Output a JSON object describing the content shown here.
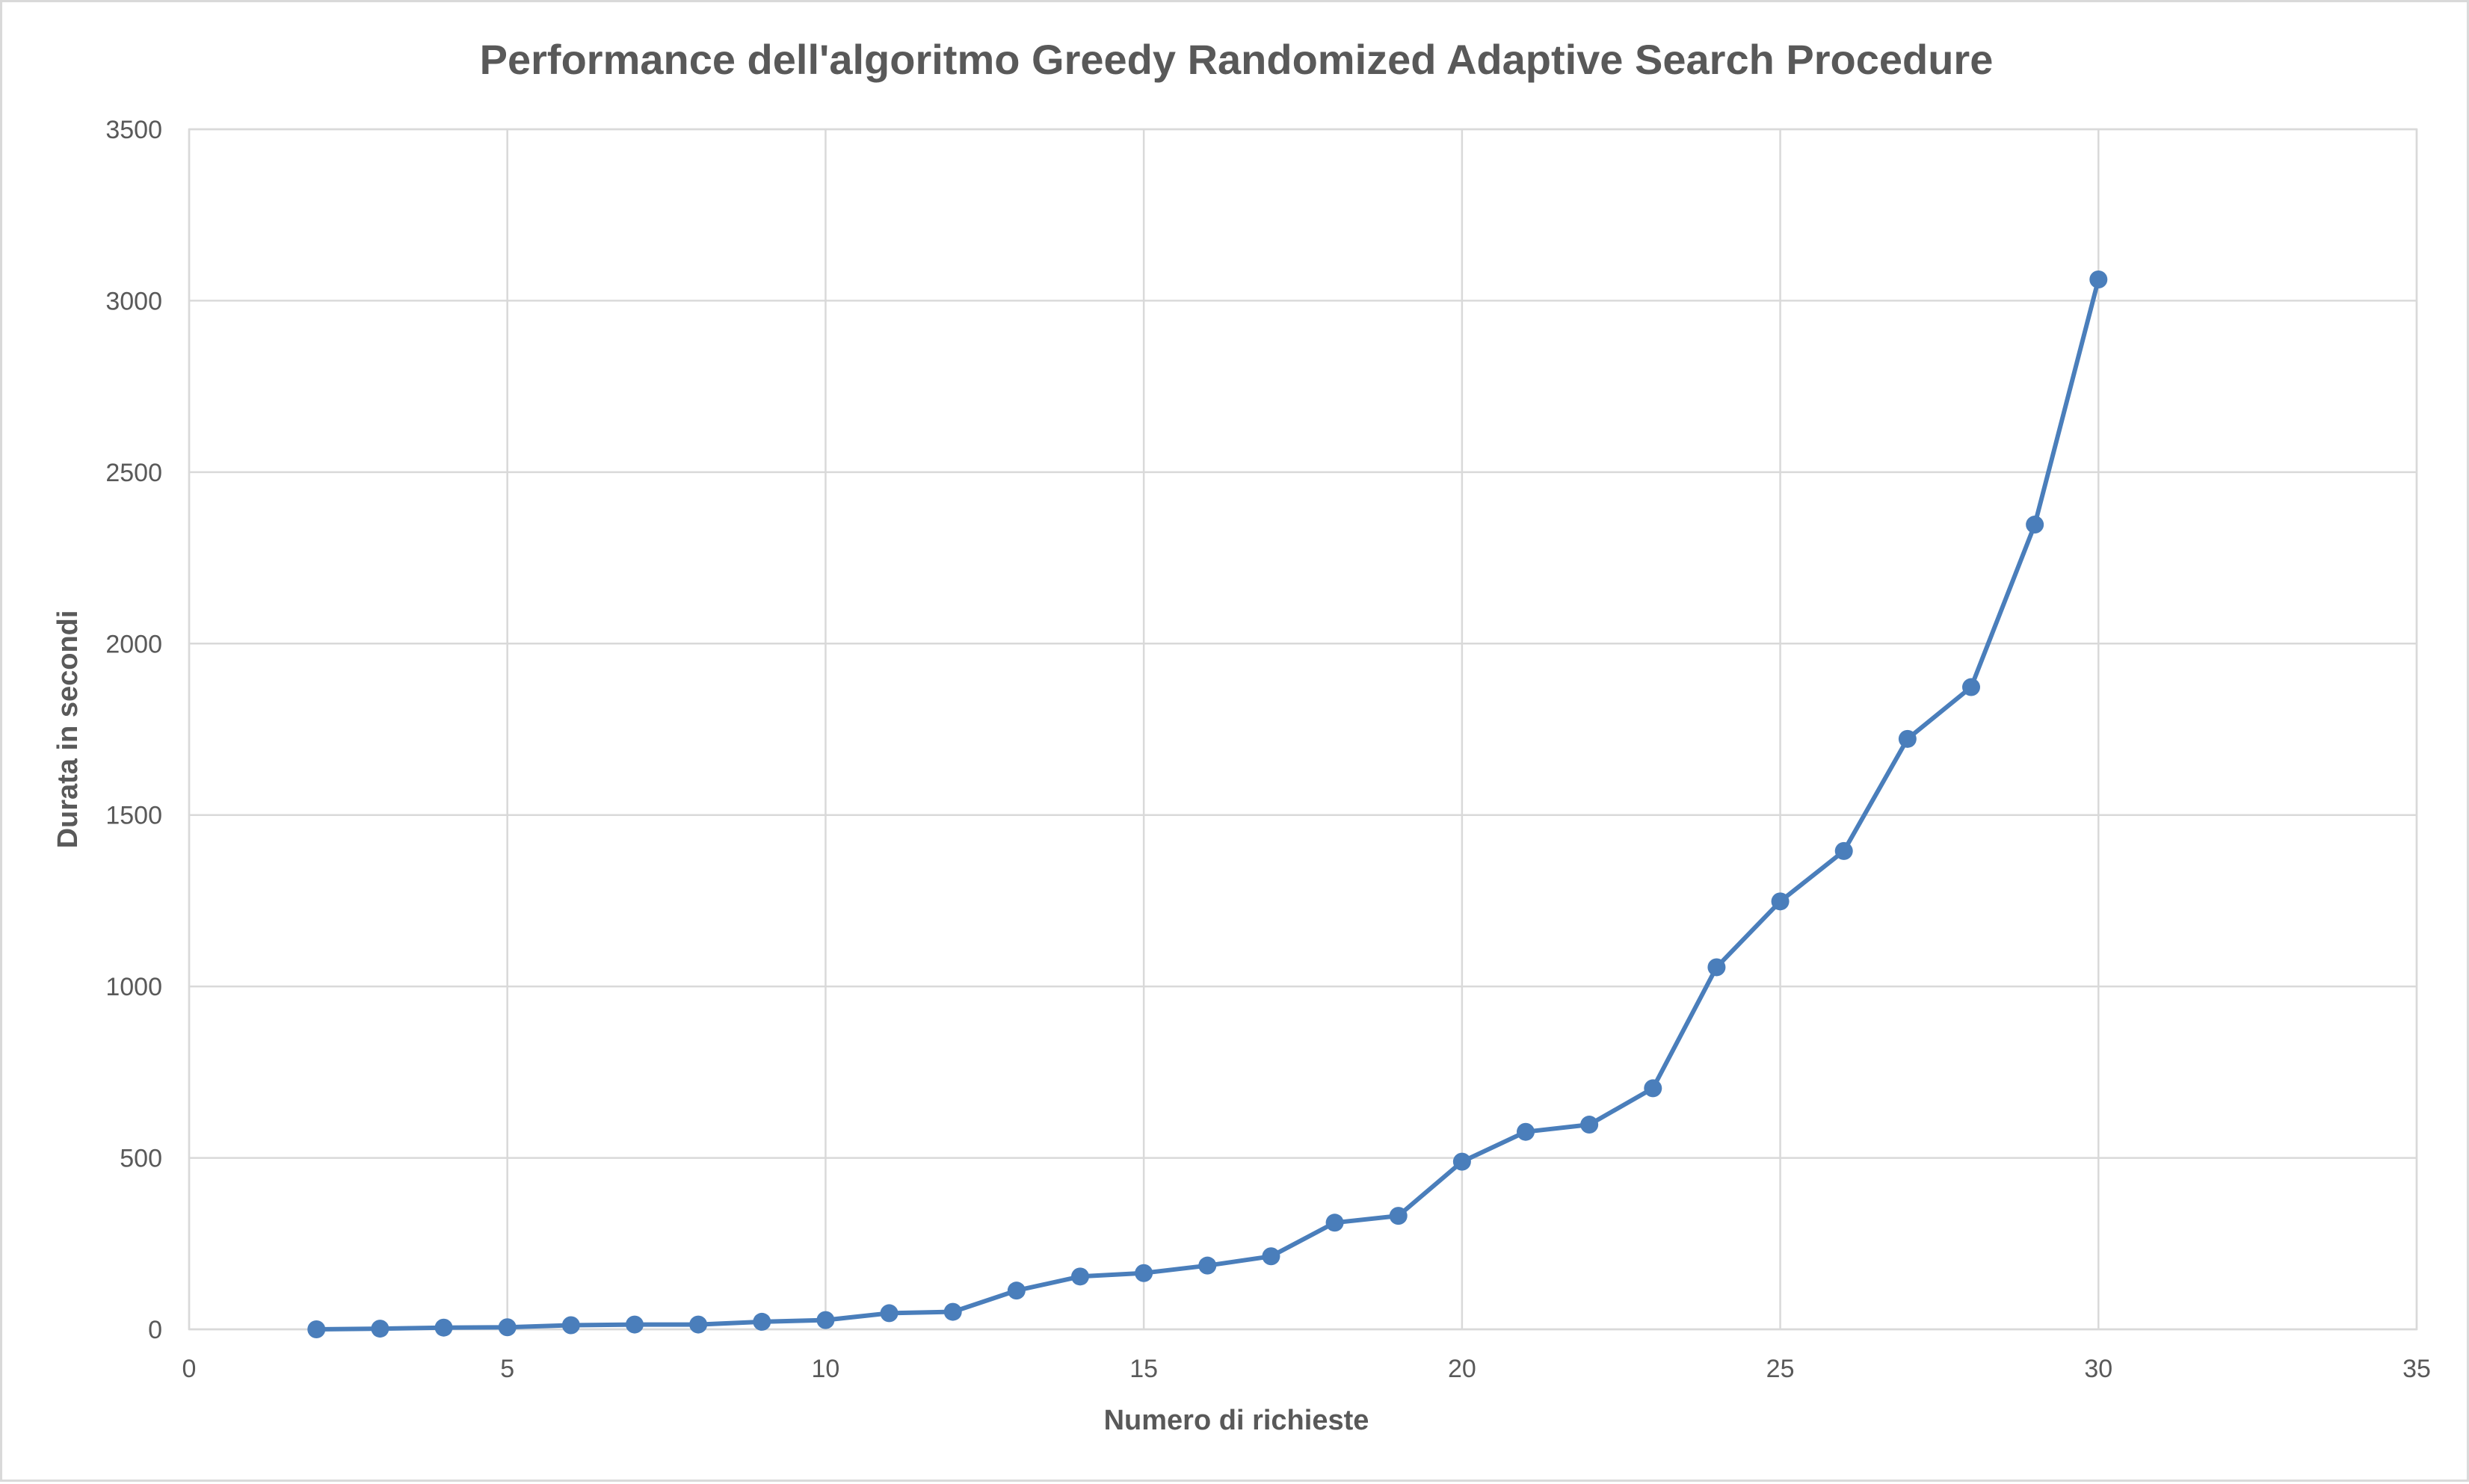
{
  "chart_data": {
    "type": "line",
    "title": "Performance dell'algoritmo Greedy Randomized Adaptive Search Procedure",
    "xlabel": "Numero di richieste",
    "ylabel": "Durata in secondi",
    "xlim": [
      0,
      35
    ],
    "ylim": [
      0,
      3500
    ],
    "x_ticks": [
      "0",
      "5",
      "10",
      "15",
      "20",
      "25",
      "30",
      "35"
    ],
    "y_ticks": [
      "0",
      "500",
      "1000",
      "1500",
      "2000",
      "2500",
      "3000",
      "3500"
    ],
    "grid": true,
    "legend": "none",
    "series": [
      {
        "color": "#4a7ebb",
        "marker": "circle",
        "x": [
          2,
          3,
          4,
          5,
          6,
          7,
          8,
          9,
          10,
          11,
          12,
          13,
          14,
          15,
          16,
          17,
          18,
          19,
          20,
          21,
          22,
          23,
          24,
          25,
          26,
          27,
          28,
          29,
          30
        ],
        "y": [
          0,
          2,
          5,
          6,
          12,
          14,
          14,
          22,
          27,
          47,
          51,
          113,
          154,
          164,
          186,
          213,
          311,
          331,
          489,
          576,
          597,
          703,
          1056,
          1248,
          1395,
          1722,
          1873,
          2347,
          3062
        ]
      }
    ]
  }
}
